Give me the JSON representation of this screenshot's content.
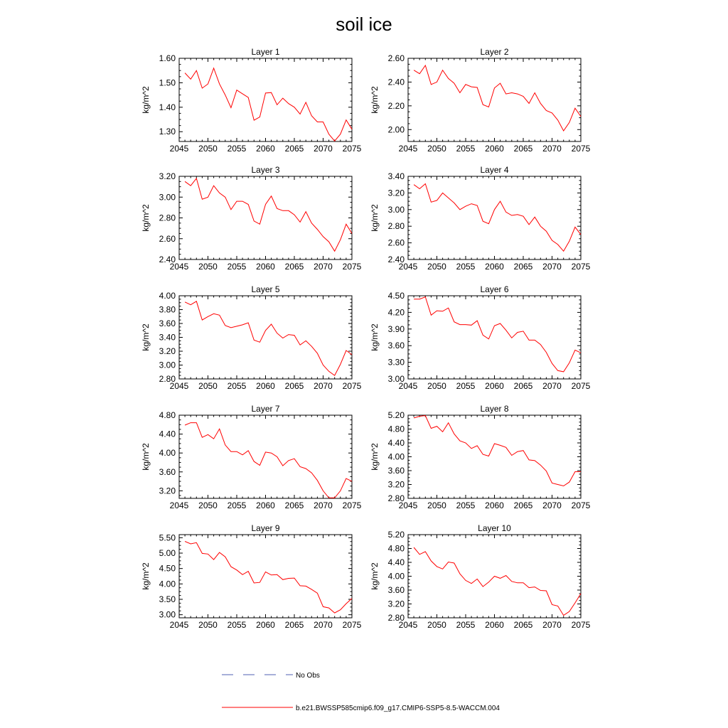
{
  "figure": {
    "title": "soil ice"
  },
  "legend": {
    "entries": [
      {
        "label": "No Obs",
        "color": "#4f5fb3",
        "style": "dashed"
      },
      {
        "label": "b.e21.BWSSP585cmip6.f09_g17.CMIP6-SSP5-8.5-WACCM.004",
        "color": "#ff0000",
        "style": "solid"
      }
    ]
  },
  "chart_data": [
    {
      "type": "line",
      "title": "Layer 1",
      "xlabel": "",
      "ylabel": "kg/m^2",
      "xlim": [
        2045,
        2075
      ],
      "xticks": [
        "2045",
        "2050",
        "2055",
        "2060",
        "2065",
        "2070",
        "2075"
      ],
      "ylim": [
        1.26,
        1.6
      ],
      "yticks": [
        "1.30",
        "1.40",
        "1.50",
        "1.60"
      ],
      "x": [
        2046,
        2047,
        2048,
        2049,
        2050,
        2051,
        2052,
        2053,
        2054,
        2055,
        2056,
        2057,
        2058,
        2059,
        2060,
        2061,
        2062,
        2063,
        2064,
        2065,
        2066,
        2067,
        2068,
        2069,
        2070,
        2071,
        2072,
        2073,
        2074,
        2075
      ],
      "series": [
        {
          "color": "#ff0000",
          "values": [
            1.54,
            1.515,
            1.55,
            1.478,
            1.495,
            1.56,
            1.495,
            1.45,
            1.398,
            1.47,
            1.455,
            1.44,
            1.347,
            1.36,
            1.458,
            1.46,
            1.41,
            1.437,
            1.415,
            1.4,
            1.372,
            1.42,
            1.365,
            1.34,
            1.34,
            1.29,
            1.262,
            1.29,
            1.348,
            1.31
          ]
        }
      ]
    },
    {
      "type": "line",
      "title": "Layer 2",
      "xlabel": "",
      "ylabel": "kg/m^2",
      "xlim": [
        2045,
        2075
      ],
      "xticks": [
        "2045",
        "2050",
        "2055",
        "2060",
        "2065",
        "2070",
        "2075"
      ],
      "ylim": [
        1.9,
        2.6
      ],
      "yticks": [
        "2.00",
        "2.20",
        "2.40",
        "2.60"
      ],
      "x": [
        2046,
        2047,
        2048,
        2049,
        2050,
        2051,
        2052,
        2053,
        2054,
        2055,
        2056,
        2057,
        2058,
        2059,
        2060,
        2061,
        2062,
        2063,
        2064,
        2065,
        2066,
        2067,
        2068,
        2069,
        2070,
        2071,
        2072,
        2073,
        2074,
        2075
      ],
      "series": [
        {
          "color": "#ff0000",
          "values": [
            2.5,
            2.47,
            2.54,
            2.38,
            2.4,
            2.5,
            2.43,
            2.39,
            2.31,
            2.38,
            2.36,
            2.355,
            2.21,
            2.19,
            2.35,
            2.39,
            2.3,
            2.31,
            2.3,
            2.28,
            2.22,
            2.31,
            2.22,
            2.16,
            2.14,
            2.08,
            1.99,
            2.06,
            2.18,
            2.11
          ]
        }
      ]
    },
    {
      "type": "line",
      "title": "Layer 3",
      "xlabel": "",
      "ylabel": "kg/m^2",
      "xlim": [
        2045,
        2075
      ],
      "xticks": [
        "2045",
        "2050",
        "2055",
        "2060",
        "2065",
        "2070",
        "2075"
      ],
      "ylim": [
        2.4,
        3.2
      ],
      "yticks": [
        "2.40",
        "2.60",
        "2.80",
        "3.00",
        "3.20"
      ],
      "x": [
        2046,
        2047,
        2048,
        2049,
        2050,
        2051,
        2052,
        2053,
        2054,
        2055,
        2056,
        2057,
        2058,
        2059,
        2060,
        2061,
        2062,
        2063,
        2064,
        2065,
        2066,
        2067,
        2068,
        2069,
        2070,
        2071,
        2072,
        2073,
        2074,
        2075
      ],
      "series": [
        {
          "color": "#ff0000",
          "values": [
            3.15,
            3.11,
            3.18,
            2.98,
            3.0,
            3.11,
            3.04,
            3.0,
            2.88,
            2.96,
            2.96,
            2.93,
            2.77,
            2.74,
            2.93,
            3.01,
            2.89,
            2.87,
            2.87,
            2.83,
            2.76,
            2.86,
            2.75,
            2.69,
            2.62,
            2.57,
            2.48,
            2.59,
            2.74,
            2.65
          ]
        }
      ]
    },
    {
      "type": "line",
      "title": "Layer 4",
      "xlabel": "",
      "ylabel": "kg/m^2",
      "xlim": [
        2045,
        2075
      ],
      "xticks": [
        "2045",
        "2050",
        "2055",
        "2060",
        "2065",
        "2070",
        "2075"
      ],
      "ylim": [
        2.4,
        3.4
      ],
      "yticks": [
        "2.40",
        "2.60",
        "2.80",
        "3.00",
        "3.20",
        "3.40"
      ],
      "x": [
        2046,
        2047,
        2048,
        2049,
        2050,
        2051,
        2052,
        2053,
        2054,
        2055,
        2056,
        2057,
        2058,
        2059,
        2060,
        2061,
        2062,
        2063,
        2064,
        2065,
        2066,
        2067,
        2068,
        2069,
        2070,
        2071,
        2072,
        2073,
        2074,
        2075
      ],
      "series": [
        {
          "color": "#ff0000",
          "values": [
            3.3,
            3.25,
            3.31,
            3.09,
            3.11,
            3.2,
            3.14,
            3.08,
            3.0,
            3.04,
            3.07,
            3.05,
            2.86,
            2.83,
            3.0,
            3.1,
            2.97,
            2.93,
            2.94,
            2.92,
            2.82,
            2.91,
            2.8,
            2.74,
            2.63,
            2.58,
            2.5,
            2.62,
            2.79,
            2.7
          ]
        }
      ]
    },
    {
      "type": "line",
      "title": "Layer 5",
      "xlabel": "",
      "ylabel": "kg/m^2",
      "xlim": [
        2045,
        2075
      ],
      "xticks": [
        "2045",
        "2050",
        "2055",
        "2060",
        "2065",
        "2070",
        "2075"
      ],
      "ylim": [
        2.8,
        4.0
      ],
      "yticks": [
        "2.80",
        "3.00",
        "3.20",
        "3.40",
        "3.60",
        "3.80",
        "4.00"
      ],
      "x": [
        2046,
        2047,
        2048,
        2049,
        2050,
        2051,
        2052,
        2053,
        2054,
        2055,
        2056,
        2057,
        2058,
        2059,
        2060,
        2061,
        2062,
        2063,
        2064,
        2065,
        2066,
        2067,
        2068,
        2069,
        2070,
        2071,
        2072,
        2073,
        2074,
        2075
      ],
      "series": [
        {
          "color": "#ff0000",
          "values": [
            3.91,
            3.87,
            3.92,
            3.65,
            3.7,
            3.74,
            3.72,
            3.57,
            3.54,
            3.56,
            3.58,
            3.61,
            3.36,
            3.33,
            3.5,
            3.59,
            3.46,
            3.39,
            3.44,
            3.43,
            3.29,
            3.35,
            3.27,
            3.17,
            3.0,
            2.91,
            2.85,
            3.01,
            3.21,
            3.15
          ]
        }
      ]
    },
    {
      "type": "line",
      "title": "Layer 6",
      "xlabel": "",
      "ylabel": "kg/m^2",
      "xlim": [
        2045,
        2075
      ],
      "xticks": [
        "2045",
        "2050",
        "2055",
        "2060",
        "2065",
        "2070",
        "2075"
      ],
      "ylim": [
        3.0,
        4.5
      ],
      "yticks": [
        "3.00",
        "3.30",
        "3.60",
        "3.90",
        "4.20",
        "4.50"
      ],
      "x": [
        2046,
        2047,
        2048,
        2049,
        2050,
        2051,
        2052,
        2053,
        2054,
        2055,
        2056,
        2057,
        2058,
        2059,
        2060,
        2061,
        2062,
        2063,
        2064,
        2065,
        2066,
        2067,
        2068,
        2069,
        2070,
        2071,
        2072,
        2073,
        2074,
        2075
      ],
      "series": [
        {
          "color": "#ff0000",
          "values": [
            4.44,
            4.44,
            4.48,
            4.15,
            4.23,
            4.22,
            4.28,
            4.03,
            3.98,
            3.98,
            3.97,
            4.05,
            3.79,
            3.72,
            3.96,
            4.0,
            3.88,
            3.74,
            3.84,
            3.86,
            3.7,
            3.7,
            3.62,
            3.48,
            3.28,
            3.15,
            3.13,
            3.29,
            3.52,
            3.47
          ]
        }
      ]
    },
    {
      "type": "line",
      "title": "Layer 7",
      "xlabel": "",
      "ylabel": "kg/m^2",
      "xlim": [
        2045,
        2075
      ],
      "xticks": [
        "2045",
        "2050",
        "2055",
        "2060",
        "2065",
        "2070",
        "2075"
      ],
      "ylim": [
        3.04,
        4.8
      ],
      "yticks": [
        "3.20",
        "3.60",
        "4.00",
        "4.40",
        "4.80"
      ],
      "x": [
        2046,
        2047,
        2048,
        2049,
        2050,
        2051,
        2052,
        2053,
        2054,
        2055,
        2056,
        2057,
        2058,
        2059,
        2060,
        2061,
        2062,
        2063,
        2064,
        2065,
        2066,
        2067,
        2068,
        2069,
        2070,
        2071,
        2072,
        2073,
        2074,
        2075
      ],
      "series": [
        {
          "color": "#ff0000",
          "values": [
            4.59,
            4.64,
            4.64,
            4.33,
            4.39,
            4.3,
            4.51,
            4.17,
            4.03,
            4.03,
            3.96,
            4.05,
            3.82,
            3.74,
            4.02,
            4.0,
            3.92,
            3.73,
            3.84,
            3.88,
            3.71,
            3.67,
            3.58,
            3.42,
            3.2,
            3.05,
            3.05,
            3.2,
            3.46,
            3.4
          ]
        }
      ]
    },
    {
      "type": "line",
      "title": "Layer 8",
      "xlabel": "",
      "ylabel": "kg/m^2",
      "xlim": [
        2045,
        2075
      ],
      "xticks": [
        "2045",
        "2050",
        "2055",
        "2060",
        "2065",
        "2070",
        "2075"
      ],
      "ylim": [
        2.8,
        5.2
      ],
      "yticks": [
        "2.80",
        "3.20",
        "3.60",
        "4.00",
        "4.40",
        "4.80",
        "5.20"
      ],
      "x": [
        2046,
        2047,
        2048,
        2049,
        2050,
        2051,
        2052,
        2053,
        2054,
        2055,
        2056,
        2057,
        2058,
        2059,
        2060,
        2061,
        2062,
        2063,
        2064,
        2065,
        2066,
        2067,
        2068,
        2069,
        2070,
        2071,
        2072,
        2073,
        2074,
        2075
      ],
      "series": [
        {
          "color": "#ff0000",
          "values": [
            5.12,
            5.17,
            5.19,
            4.82,
            4.88,
            4.72,
            4.98,
            4.66,
            4.46,
            4.4,
            4.24,
            4.32,
            4.07,
            4.02,
            4.38,
            4.33,
            4.27,
            4.04,
            4.15,
            4.18,
            3.91,
            3.89,
            3.76,
            3.59,
            3.24,
            3.2,
            3.16,
            3.27,
            3.57,
            3.57
          ]
        }
      ]
    },
    {
      "type": "line",
      "title": "Layer 9",
      "xlabel": "",
      "ylabel": "kg/m^2",
      "xlim": [
        2045,
        2075
      ],
      "xticks": [
        "2045",
        "2050",
        "2055",
        "2060",
        "2065",
        "2070",
        "2075"
      ],
      "ylim": [
        2.9,
        5.6
      ],
      "yticks": [
        "3.00",
        "3.50",
        "4.00",
        "4.50",
        "5.00",
        "5.50"
      ],
      "x": [
        2046,
        2047,
        2048,
        2049,
        2050,
        2051,
        2052,
        2053,
        2054,
        2055,
        2056,
        2057,
        2058,
        2059,
        2060,
        2061,
        2062,
        2063,
        2064,
        2065,
        2066,
        2067,
        2068,
        2069,
        2070,
        2071,
        2072,
        2073,
        2074,
        2075
      ],
      "series": [
        {
          "color": "#ff0000",
          "values": [
            5.38,
            5.3,
            5.34,
            4.99,
            4.97,
            4.79,
            5.02,
            4.88,
            4.56,
            4.45,
            4.3,
            4.41,
            4.03,
            4.05,
            4.39,
            4.29,
            4.3,
            4.14,
            4.18,
            4.19,
            3.94,
            3.93,
            3.82,
            3.7,
            3.26,
            3.22,
            3.06,
            3.16,
            3.36,
            3.53
          ]
        }
      ]
    },
    {
      "type": "line",
      "title": "Layer 10",
      "xlabel": "",
      "ylabel": "kg/m^2",
      "xlim": [
        2045,
        2075
      ],
      "xticks": [
        "2045",
        "2050",
        "2055",
        "2060",
        "2065",
        "2070",
        "2075"
      ],
      "ylim": [
        2.8,
        5.2
      ],
      "yticks": [
        "2.80",
        "3.20",
        "3.60",
        "4.00",
        "4.40",
        "4.80",
        "5.20"
      ],
      "x": [
        2046,
        2047,
        2048,
        2049,
        2050,
        2051,
        2052,
        2053,
        2054,
        2055,
        2056,
        2057,
        2058,
        2059,
        2060,
        2061,
        2062,
        2063,
        2064,
        2065,
        2066,
        2067,
        2068,
        2069,
        2070,
        2071,
        2072,
        2073,
        2074,
        2075
      ],
      "series": [
        {
          "color": "#ff0000",
          "values": [
            4.83,
            4.63,
            4.71,
            4.44,
            4.28,
            4.21,
            4.41,
            4.38,
            4.07,
            3.88,
            3.79,
            3.92,
            3.7,
            3.83,
            4.0,
            3.94,
            4.02,
            3.85,
            3.81,
            3.81,
            3.67,
            3.69,
            3.59,
            3.58,
            3.18,
            3.14,
            2.87,
            2.98,
            3.23,
            3.5
          ]
        }
      ]
    }
  ]
}
